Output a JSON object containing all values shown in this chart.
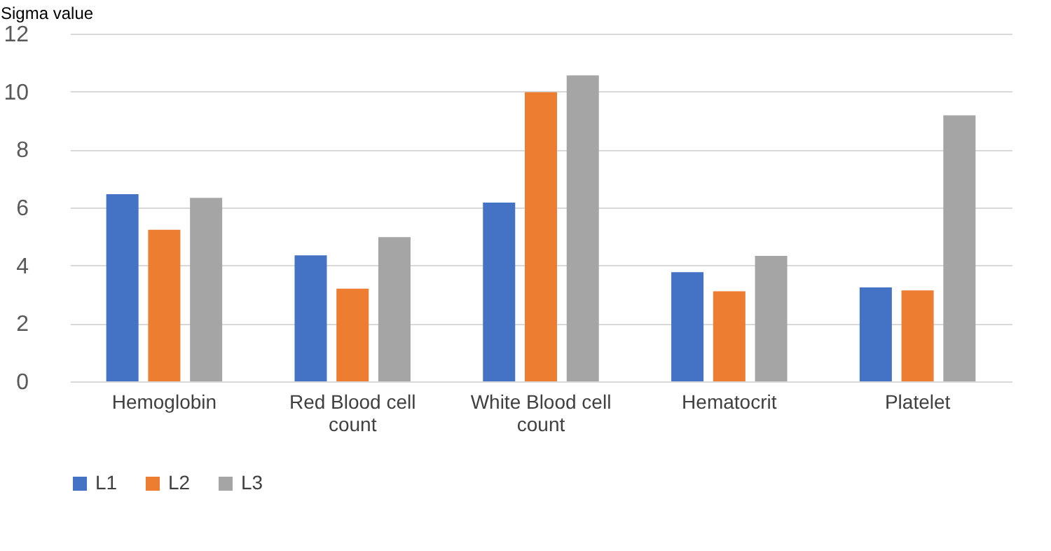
{
  "chart_data": {
    "type": "bar",
    "ylabel": "Sigma value",
    "categories": [
      "Hemoglobin",
      "Red Blood cell count",
      "White Blood cell count",
      "Hematocrit",
      "Platelet"
    ],
    "series": [
      {
        "name": "L1",
        "color": "#4472c4",
        "values": [
          6.46,
          4.35,
          6.17,
          3.77,
          3.24
        ]
      },
      {
        "name": "L2",
        "color": "#ed7d31",
        "values": [
          5.23,
          3.2,
          9.98,
          3.11,
          3.14
        ]
      },
      {
        "name": "L3",
        "color": "#a5a5a5",
        "values": [
          6.33,
          4.98,
          10.56,
          4.33,
          9.18
        ]
      }
    ],
    "ylim": [
      0,
      12
    ],
    "yticks": [
      0,
      2,
      4,
      6,
      8,
      10,
      12
    ],
    "grid": "y",
    "legend": "bottom"
  }
}
